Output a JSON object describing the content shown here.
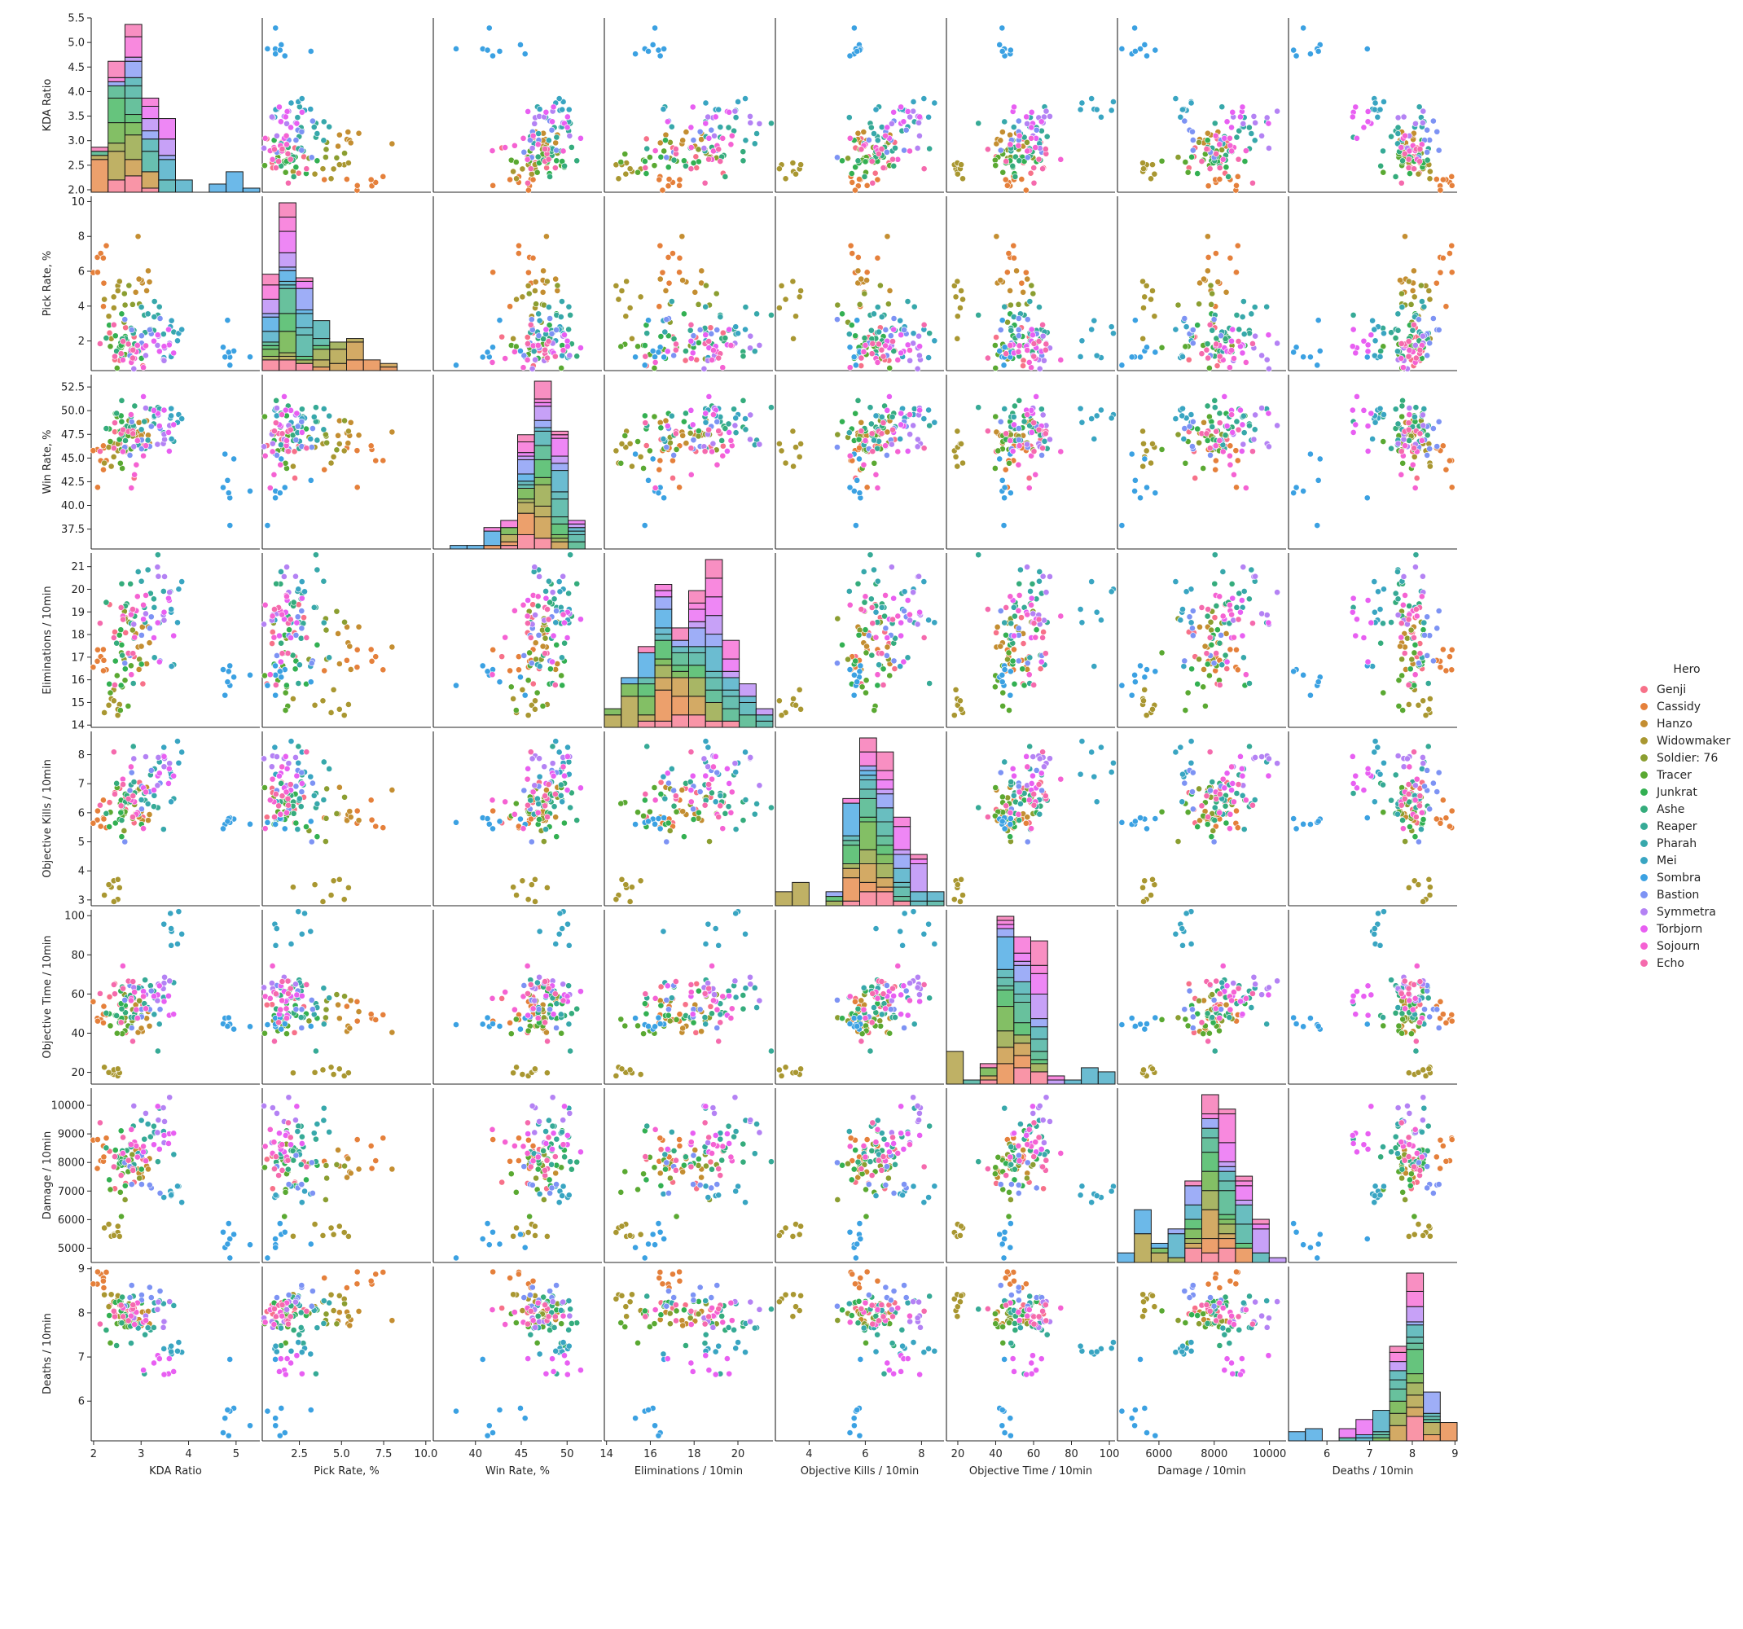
{
  "chart_data": {
    "type": "scatter",
    "kind": "pairplot",
    "diagonal": "stacked histogram by hue",
    "grid": false,
    "legend": {
      "title": "Hero",
      "placement": "right",
      "entries": [
        "Genji",
        "Cassidy",
        "Hanzo",
        "Widowmaker",
        "Soldier: 76",
        "Tracer",
        "Junkrat",
        "Ashe",
        "Reaper",
        "Pharah",
        "Mei",
        "Sombra",
        "Bastion",
        "Symmetra",
        "Torbjorn",
        "Sojourn",
        "Echo"
      ]
    },
    "colors": {
      "Genji": "#f77189",
      "Cassidy": "#e5803b",
      "Hanzo": "#c48e31",
      "Widowmaker": "#a99731",
      "Soldier: 76": "#8b9e31",
      "Tracer": "#5aa932",
      "Junkrat": "#33b052",
      "Ashe": "#35ac7c",
      "Reaper": "#36aa96",
      "Pharah": "#37a8ab",
      "Mei": "#39a5c2",
      "Sombra": "#3ba1e2",
      "Bastion": "#7d93f4",
      "Symmetra": "#b482f4",
      "Torbjorn": "#e85ff2",
      "Sojourn": "#f562d3",
      "Echo": "#f56aad"
    },
    "variables": [
      {
        "label": "KDA Ratio",
        "range": [
          1.95,
          5.5
        ],
        "x_ticks": [
          "2",
          "3",
          "4",
          "5"
        ],
        "y_ticks": [
          "2.0",
          "2.5",
          "3.0",
          "3.5",
          "4.0",
          "4.5",
          "5.0",
          "5.5"
        ]
      },
      {
        "label": "Pick Rate, %",
        "range": [
          0.3,
          10.3
        ],
        "x_ticks": [
          "2.5",
          "5.0",
          "7.5",
          "10.0"
        ],
        "y_ticks": [
          "2",
          "4",
          "6",
          "8",
          "10"
        ]
      },
      {
        "label": "Win Rate, %",
        "range": [
          35.4,
          53.8
        ],
        "x_ticks": [
          "40",
          "45",
          "50"
        ],
        "y_ticks": [
          "37.5",
          "40.0",
          "42.5",
          "45.0",
          "47.5",
          "50.0",
          "52.5"
        ]
      },
      {
        "label": "Eliminations / 10min",
        "range": [
          13.9,
          21.6
        ],
        "x_ticks": [
          "14",
          "16",
          "18",
          "20"
        ],
        "y_ticks": [
          "14",
          "15",
          "16",
          "17",
          "18",
          "19",
          "20",
          "21"
        ]
      },
      {
        "label": "Objective Kills / 10min",
        "range": [
          2.8,
          8.8
        ],
        "x_ticks": [
          "4",
          "6",
          "8"
        ],
        "y_ticks": [
          "3",
          "4",
          "5",
          "6",
          "7",
          "8"
        ]
      },
      {
        "label": "Objective Time / 10min",
        "range": [
          14,
          103
        ],
        "x_ticks": [
          "20",
          "40",
          "60",
          "80",
          "100"
        ],
        "y_ticks": [
          "20",
          "40",
          "60",
          "80",
          "100"
        ]
      },
      {
        "label": "Damage / 10min",
        "range": [
          4500,
          10600
        ],
        "x_ticks": [
          "6000",
          "8000",
          "10000"
        ],
        "y_ticks": [
          "5000",
          "6000",
          "7000",
          "8000",
          "9000",
          "10000"
        ]
      },
      {
        "label": "Deaths / 10min",
        "range": [
          5.1,
          9.05
        ],
        "x_ticks": [
          "6",
          "7",
          "8",
          "9"
        ],
        "y_ticks": [
          "6",
          "7",
          "8",
          "9"
        ]
      }
    ],
    "heroes": {
      "Genji": {
        "centers": [
          2.75,
          2.0,
          47.0,
          17.5,
          6.3,
          56,
          7900,
          8.05
        ],
        "spreads": [
          0.25,
          0.8,
          2.0,
          0.9,
          0.6,
          6,
          500,
          0.2
        ]
      },
      "Cassidy": {
        "centers": [
          2.15,
          6.0,
          45.0,
          16.7,
          6.0,
          50,
          8200,
          8.75
        ],
        "spreads": [
          0.08,
          1.0,
          1.5,
          0.5,
          0.3,
          4,
          400,
          0.12
        ]
      },
      "Hanzo": {
        "centers": [
          3.0,
          5.0,
          47.5,
          17.0,
          6.3,
          47,
          7800,
          7.9
        ],
        "spreads": [
          0.1,
          1.2,
          1.2,
          0.8,
          0.6,
          5,
          300,
          0.15
        ]
      },
      "Widowmaker": {
        "centers": [
          2.4,
          4.0,
          45.0,
          15.0,
          3.4,
          20,
          5650,
          8.2
        ],
        "spreads": [
          0.1,
          1.5,
          1.5,
          0.4,
          0.2,
          1.2,
          150,
          0.2
        ]
      },
      "Soldier: 76": {
        "centers": [
          2.8,
          3.5,
          47.0,
          18.0,
          6.0,
          55,
          8000,
          8.0
        ],
        "spreads": [
          0.15,
          1.5,
          1.5,
          1.0,
          0.7,
          8,
          600,
          0.2
        ]
      },
      "Tracer": {
        "centers": [
          2.7,
          1.5,
          46.0,
          16.5,
          6.0,
          45,
          7500,
          7.7
        ],
        "spreads": [
          0.2,
          0.5,
          1.5,
          0.8,
          0.5,
          4,
          400,
          0.3
        ]
      },
      "Junkrat": {
        "centers": [
          2.6,
          2.2,
          47.0,
          17.2,
          5.6,
          50,
          8000,
          8.1
        ],
        "spreads": [
          0.15,
          0.6,
          1.5,
          0.9,
          0.5,
          5,
          400,
          0.2
        ]
      },
      "Ashe": {
        "centers": [
          2.7,
          2.0,
          48.0,
          18.5,
          6.5,
          55,
          8500,
          7.9
        ],
        "spreads": [
          0.15,
          0.7,
          1.5,
          1.0,
          0.6,
          5,
          500,
          0.3
        ]
      },
      "Reaper": {
        "centers": [
          3.0,
          2.8,
          49.0,
          19.0,
          7.0,
          58,
          8800,
          7.5
        ],
        "spreads": [
          0.2,
          0.8,
          1.5,
          1.2,
          0.8,
          8,
          500,
          0.4
        ]
      },
      "Pharah": {
        "centers": [
          3.2,
          2.4,
          48.5,
          19.2,
          6.4,
          60,
          9000,
          8.2
        ],
        "spreads": [
          0.3,
          0.8,
          1.8,
          1.2,
          0.6,
          6,
          500,
          0.3
        ]
      },
      "Mei": {
        "centers": [
          3.7,
          2.0,
          49.0,
          19.0,
          7.5,
          85,
          7000,
          7.2
        ],
        "spreads": [
          0.15,
          0.8,
          1.0,
          1.3,
          0.8,
          10,
          250,
          0.15
        ]
      },
      "Sombra": {
        "centers": [
          4.9,
          1.5,
          43.0,
          15.8,
          5.6,
          44,
          5500,
          5.8
        ],
        "spreads": [
          0.35,
          0.8,
          2.5,
          0.8,
          0.2,
          3,
          400,
          0.35
        ]
      },
      "Bastion": {
        "centers": [
          3.0,
          2.2,
          46.0,
          17.5,
          6.2,
          55,
          7500,
          8.2
        ],
        "spreads": [
          0.25,
          0.7,
          2.0,
          1.0,
          0.8,
          8,
          600,
          0.2
        ]
      },
      "Symmetra": {
        "centers": [
          3.3,
          1.3,
          48.0,
          19.2,
          8.0,
          62,
          9800,
          8.0
        ],
        "spreads": [
          0.2,
          0.4,
          2.0,
          1.0,
          0.4,
          6,
          500,
          0.2
        ]
      },
      "Torbjorn": {
        "centers": [
          3.3,
          1.7,
          50.0,
          18.5,
          7.3,
          58,
          9000,
          6.9
        ],
        "spreads": [
          0.25,
          0.5,
          1.5,
          1.0,
          0.5,
          6,
          400,
          0.2
        ]
      },
      "Sojourn": {
        "centers": [
          2.9,
          1.2,
          46.0,
          18.3,
          6.8,
          60,
          8500,
          8.0
        ],
        "spreads": [
          0.15,
          0.4,
          2.5,
          1.0,
          0.6,
          6,
          500,
          0.15
        ]
      },
      "Echo": {
        "centers": [
          2.6,
          1.8,
          47.0,
          17.6,
          6.2,
          60,
          8200,
          8.0
        ],
        "spreads": [
          0.2,
          0.5,
          2.0,
          1.0,
          0.6,
          6,
          500,
          0.15
        ]
      }
    },
    "points_per_hero": 8
  }
}
